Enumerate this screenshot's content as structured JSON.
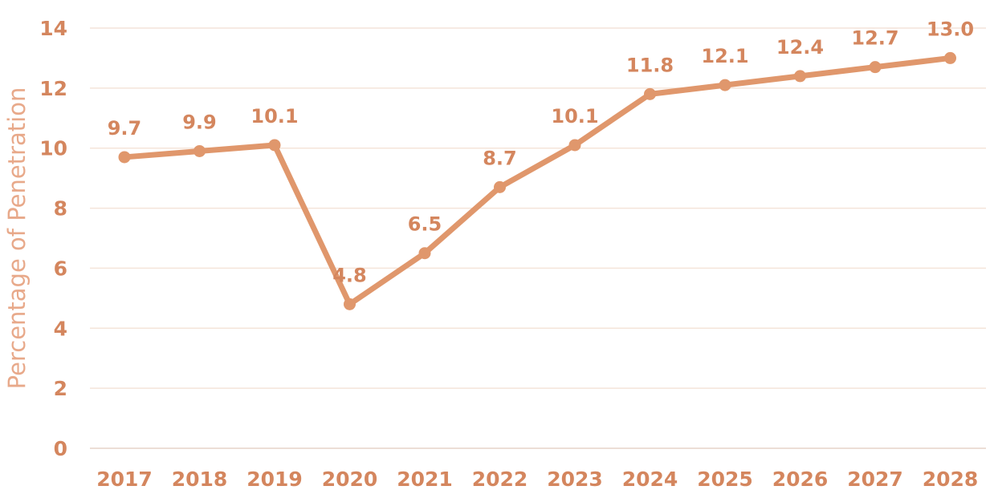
{
  "chart_data": {
    "type": "line",
    "title": "",
    "xlabel": "",
    "ylabel": "Percentage of Penetration",
    "categories": [
      "2017",
      "2018",
      "2019",
      "2020",
      "2021",
      "2022",
      "2023",
      "2024",
      "2025",
      "2026",
      "2027",
      "2028"
    ],
    "series": [
      {
        "values": [
          9.7,
          9.9,
          10.1,
          4.8,
          6.5,
          8.7,
          10.1,
          11.8,
          12.1,
          12.4,
          12.7,
          13.0
        ],
        "labels": [
          "9.7",
          "9.9",
          "10.1",
          "4.8",
          "6.5",
          "8.7",
          "10.1",
          "11.8",
          "12.1",
          "12.4",
          "12.7",
          "13.0"
        ]
      }
    ],
    "ylim": [
      0,
      14
    ],
    "yticks": [
      "0",
      "2",
      "4",
      "6",
      "8",
      "10",
      "12",
      "14"
    ],
    "grid": true,
    "legend": "none",
    "colors": {
      "line": "#e0976c",
      "text": "#d4865e",
      "axis_title": "#e8a98a",
      "grid": "#f4e4da"
    }
  }
}
